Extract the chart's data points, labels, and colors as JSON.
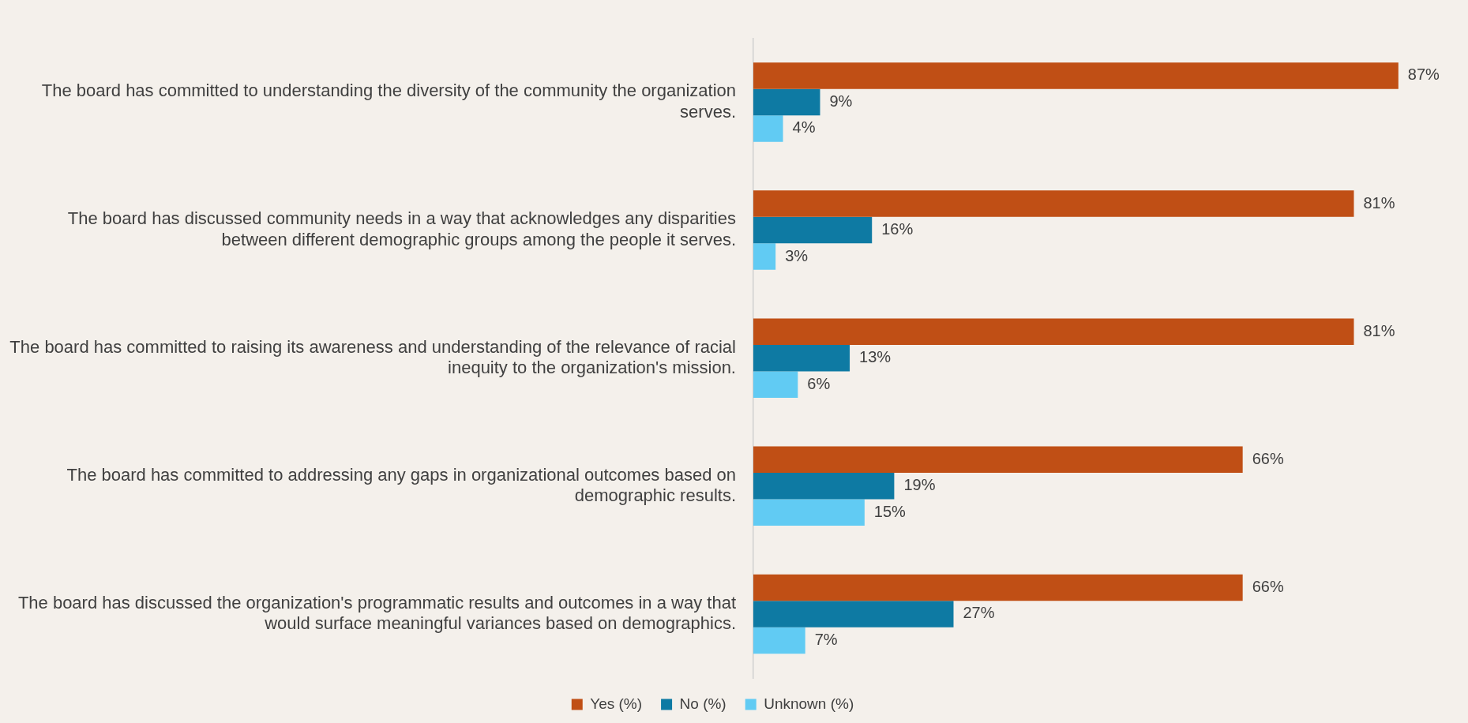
{
  "chart_data": {
    "type": "bar",
    "orientation": "horizontal",
    "grid": false,
    "legend": "bottom",
    "categories": [
      "The board has committed to understanding the diversity of the community the organization serves.",
      "The board has discussed community needs in a way that acknowledges any disparities between different demographic groups among the people it serves.",
      "The board has committed to raising its awareness and understanding of the relevance of racial inequity to the organization's mission.",
      "The board has committed to addressing any gaps in organizational outcomes based on demographic results.",
      "The board has discussed the organization's programmatic results and outcomes in a way that would surface meaningful variances based on demographics."
    ],
    "series": [
      {
        "name": "Yes (%)",
        "color": "#c04f15",
        "values": [
          87,
          81,
          81,
          66,
          66
        ],
        "value_labels": [
          "87%",
          "81%",
          "81%",
          "66%",
          "66%"
        ]
      },
      {
        "name": "No (%)",
        "color": "#0e7aa3",
        "values": [
          9,
          16,
          13,
          19,
          27
        ],
        "value_labels": [
          "9%",
          "16%",
          "13%",
          "19%",
          "27%"
        ]
      },
      {
        "name": "Unknown (%)",
        "color": "#61cbf3",
        "values": [
          4,
          3,
          6,
          15,
          7
        ],
        "value_labels": [
          "4%",
          "3%",
          "6%",
          "15%",
          "7%"
        ]
      }
    ]
  }
}
